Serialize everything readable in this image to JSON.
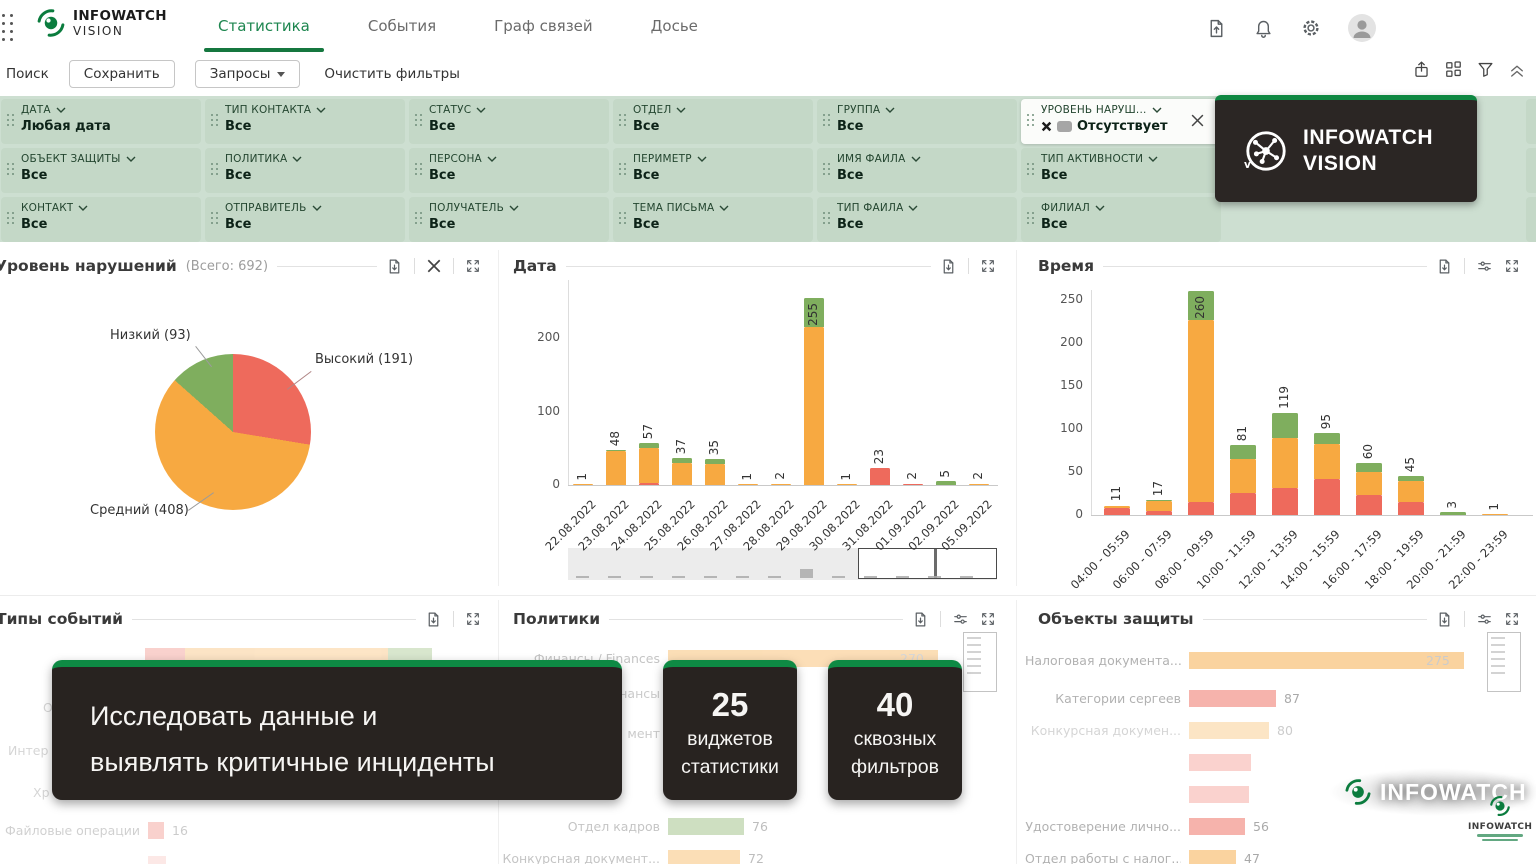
{
  "nav": {
    "brand": {
      "line1": "INFOWATCH",
      "line2": "VISION"
    },
    "tabs": [
      {
        "label": "Статистика",
        "active": true
      },
      {
        "label": "События",
        "active": false
      },
      {
        "label": "Граф связей",
        "active": false
      },
      {
        "label": "Досье",
        "active": false
      }
    ]
  },
  "toolbar": {
    "search_label": "Поиск",
    "save_button": "Сохранить",
    "queries_button": "Запросы",
    "clear_filters": "Очистить фильтры"
  },
  "filters": {
    "chips": [
      {
        "label": "ДАТА",
        "value": "Любая дата",
        "active": false,
        "excluded": false
      },
      {
        "label": "ТИП КОНТАКТА",
        "value": "Все",
        "active": false,
        "excluded": false
      },
      {
        "label": "СТАТУС",
        "value": "Все",
        "active": false,
        "excluded": false
      },
      {
        "label": "ОТДЕЛ",
        "value": "Все",
        "active": false,
        "excluded": false
      },
      {
        "label": "ГРУППА",
        "value": "Все",
        "active": false,
        "excluded": false
      },
      {
        "label": "УРОВЕНЬ НАРУШ...",
        "value": "Отсутствует",
        "active": true,
        "excluded": true
      },
      {
        "label": "ОБЪЕКТ ЗАЩИТЫ",
        "value": "Все",
        "active": false,
        "excluded": false
      },
      {
        "label": "ПОЛИТИКА",
        "value": "Все",
        "active": false,
        "excluded": false
      },
      {
        "label": "ПЕРСОНА",
        "value": "Все",
        "active": false,
        "excluded": false
      },
      {
        "label": "ПЕРИМЕТР",
        "value": "Все",
        "active": false,
        "excluded": false
      },
      {
        "label": "ИМЯ ФАЙЛА",
        "value": "Все",
        "active": false,
        "excluded": false
      },
      {
        "label": "ТИП АКТИВНОСТИ",
        "value": "Все",
        "active": false,
        "excluded": false
      },
      {
        "label": "КОНТАКТ",
        "value": "Все",
        "active": false,
        "excluded": false
      },
      {
        "label": "ОТПРАВИТЕЛЬ",
        "value": "Все",
        "active": false,
        "excluded": false
      },
      {
        "label": "ПОЛУЧАТЕЛЬ",
        "value": "Все",
        "active": false,
        "excluded": false
      },
      {
        "label": "ТЕМА ПИСЬМА",
        "value": "Все",
        "active": false,
        "excluded": false
      },
      {
        "label": "ТИП ФАЙЛА",
        "value": "Все",
        "active": false,
        "excluded": false
      },
      {
        "label": "ФИЛИАЛ",
        "value": "Все",
        "active": false,
        "excluded": false
      }
    ]
  },
  "promo": {
    "badge": {
      "line1": "INFOWATCH",
      "line2": "VISION"
    },
    "message": {
      "line1": "Исследовать данные и",
      "line2": "выявлять критичные инциденты"
    },
    "stats": [
      {
        "number": "25",
        "line1": "виджетов",
        "line2": "статистики"
      },
      {
        "number": "40",
        "line1": "сквозных",
        "line2": "фильтров"
      }
    ]
  },
  "watermark": {
    "big": "INFOWATCH",
    "small": "INFOWATCH"
  },
  "colors": {
    "accent_green": "#15834a",
    "sage_bg": "#cddfd1",
    "bar_red": "#ee6a5c",
    "bar_orange": "#f7a941",
    "bar_green": "#7fae5e",
    "dark_card": "#282320"
  },
  "icons": {
    "app-grid-icon": "dot-grid",
    "eye-logo-icon": "green arcs + pupil",
    "file-upload-icon": "page with up arrow",
    "bell-icon": "bell",
    "gear-icon": "gear",
    "avatar-icon": "person in circle",
    "share-icon": "box with up arrow",
    "widgets-icon": "four squares",
    "filter-funnel-icon": "funnel",
    "collapse-icon": "double chevron up",
    "drag-handle-icon": "six dots",
    "chevron-down-icon": "v",
    "exclude-icon": "bold x",
    "close-icon": "x",
    "export-icon": "page with down arrow",
    "settings-sliders-icon": "tune sliders",
    "fullscreen-icon": "corner arrows",
    "network-icon": "node graph in circle"
  },
  "chart_data": [
    {
      "id": "violation_level",
      "type": "pie",
      "title": "Уровень нарушений",
      "subtitle": "(Всего: 692)",
      "slices": [
        {
          "label": "Высокий",
          "value": 191,
          "color": "#ee6a5c"
        },
        {
          "label": "Средний",
          "value": 408,
          "color": "#f7a941"
        },
        {
          "label": "Низкий",
          "value": 93,
          "color": "#7fae5e"
        }
      ]
    },
    {
      "id": "date",
      "type": "bar",
      "stacked": true,
      "title": "Дата",
      "yticks": [
        0,
        100,
        200
      ],
      "ylim": [
        0,
        260
      ],
      "categories": [
        "22.08.2022",
        "23.08.2022",
        "24.08.2022",
        "25.08.2022",
        "26.08.2022",
        "27.08.2022",
        "28.08.2022",
        "29.08.2022",
        "30.08.2022",
        "31.08.2022",
        "01.09.2022",
        "02.09.2022",
        "05.09.2022"
      ],
      "totals": [
        1,
        48,
        57,
        37,
        35,
        1,
        2,
        255,
        1,
        23,
        2,
        5,
        2
      ],
      "series": [
        {
          "name": "Высокий",
          "color": "red",
          "values": [
            0,
            0,
            3,
            0,
            0,
            0,
            0,
            0,
            0,
            23,
            2,
            0,
            0
          ]
        },
        {
          "name": "Средний",
          "color": "orange",
          "values": [
            1,
            46,
            47,
            30,
            28,
            1,
            2,
            215,
            1,
            0,
            0,
            0,
            2
          ]
        },
        {
          "name": "Низкий",
          "color": "green",
          "values": [
            0,
            2,
            7,
            7,
            7,
            0,
            0,
            40,
            0,
            0,
            0,
            5,
            0
          ]
        }
      ]
    },
    {
      "id": "time",
      "type": "bar",
      "stacked": true,
      "title": "Время",
      "yticks": [
        0,
        50,
        100,
        150,
        200,
        250
      ],
      "ylim": [
        0,
        260
      ],
      "categories": [
        "04:00 - 05:59",
        "06:00 - 07:59",
        "08:00 - 09:59",
        "10:00 - 11:59",
        "12:00 - 13:59",
        "14:00 - 15:59",
        "16:00 - 17:59",
        "18:00 - 19:59",
        "20:00 - 21:59",
        "22:00 - 23:59"
      ],
      "totals": [
        11,
        17,
        260,
        81,
        119,
        95,
        60,
        45,
        3,
        1
      ],
      "series": [
        {
          "name": "Высокий",
          "color": "red",
          "values": [
            8,
            5,
            15,
            26,
            31,
            42,
            23,
            15,
            0,
            0
          ]
        },
        {
          "name": "Средний",
          "color": "orange",
          "values": [
            3,
            11,
            212,
            39,
            58,
            40,
            27,
            25,
            0,
            1
          ]
        },
        {
          "name": "Низкий",
          "color": "green",
          "values": [
            0,
            1,
            33,
            16,
            30,
            13,
            10,
            5,
            3,
            0
          ]
        }
      ]
    },
    {
      "id": "event_types",
      "type": "bar",
      "orientation": "horizontal",
      "title": "Типы событий",
      "rows": [
        {
          "label": "",
          "segments": {
            "red": 40,
            "orange": 203,
            "green": 44
          }
        },
        {
          "label": "Файловые операции",
          "value": 16,
          "color": "red"
        }
      ],
      "fragments": [
        "О",
        "Интер",
        "Хр"
      ]
    },
    {
      "id": "policies",
      "type": "bar",
      "orientation": "horizontal",
      "title": "Политики",
      "rows": [
        {
          "label": "Финансы / Finances",
          "value": 270,
          "color": "orange",
          "value_inside": true
        },
        {
          "label": "Отдел кадров",
          "value": 76,
          "color": "green"
        },
        {
          "label": "Конкурсная документ...",
          "value": 72,
          "color": "orange"
        }
      ],
      "fragments": [
        "нансы",
        "мент"
      ]
    },
    {
      "id": "protected_objects",
      "type": "bar",
      "orientation": "horizontal",
      "title": "Объекты защиты",
      "rows": [
        {
          "label": "Налоговая документа...",
          "value": 275,
          "color": "orange",
          "value_inside": true
        },
        {
          "label": "Категории сергеев",
          "value": 87,
          "color": "red"
        },
        {
          "label": "Конкурсная докумен...",
          "value": 80,
          "color": "orange",
          "faint": true
        },
        {
          "label": "",
          "value": 62,
          "color": "red",
          "faint": true,
          "hide_value": true
        },
        {
          "label": "",
          "value": 60,
          "color": "red",
          "faint": true,
          "hide_value": true
        },
        {
          "label": "Удостоверение лично...",
          "value": 56,
          "color": "red"
        },
        {
          "label": "Отдел работы с налог...",
          "value": 47,
          "color": "orange"
        }
      ],
      "fragments": []
    }
  ]
}
